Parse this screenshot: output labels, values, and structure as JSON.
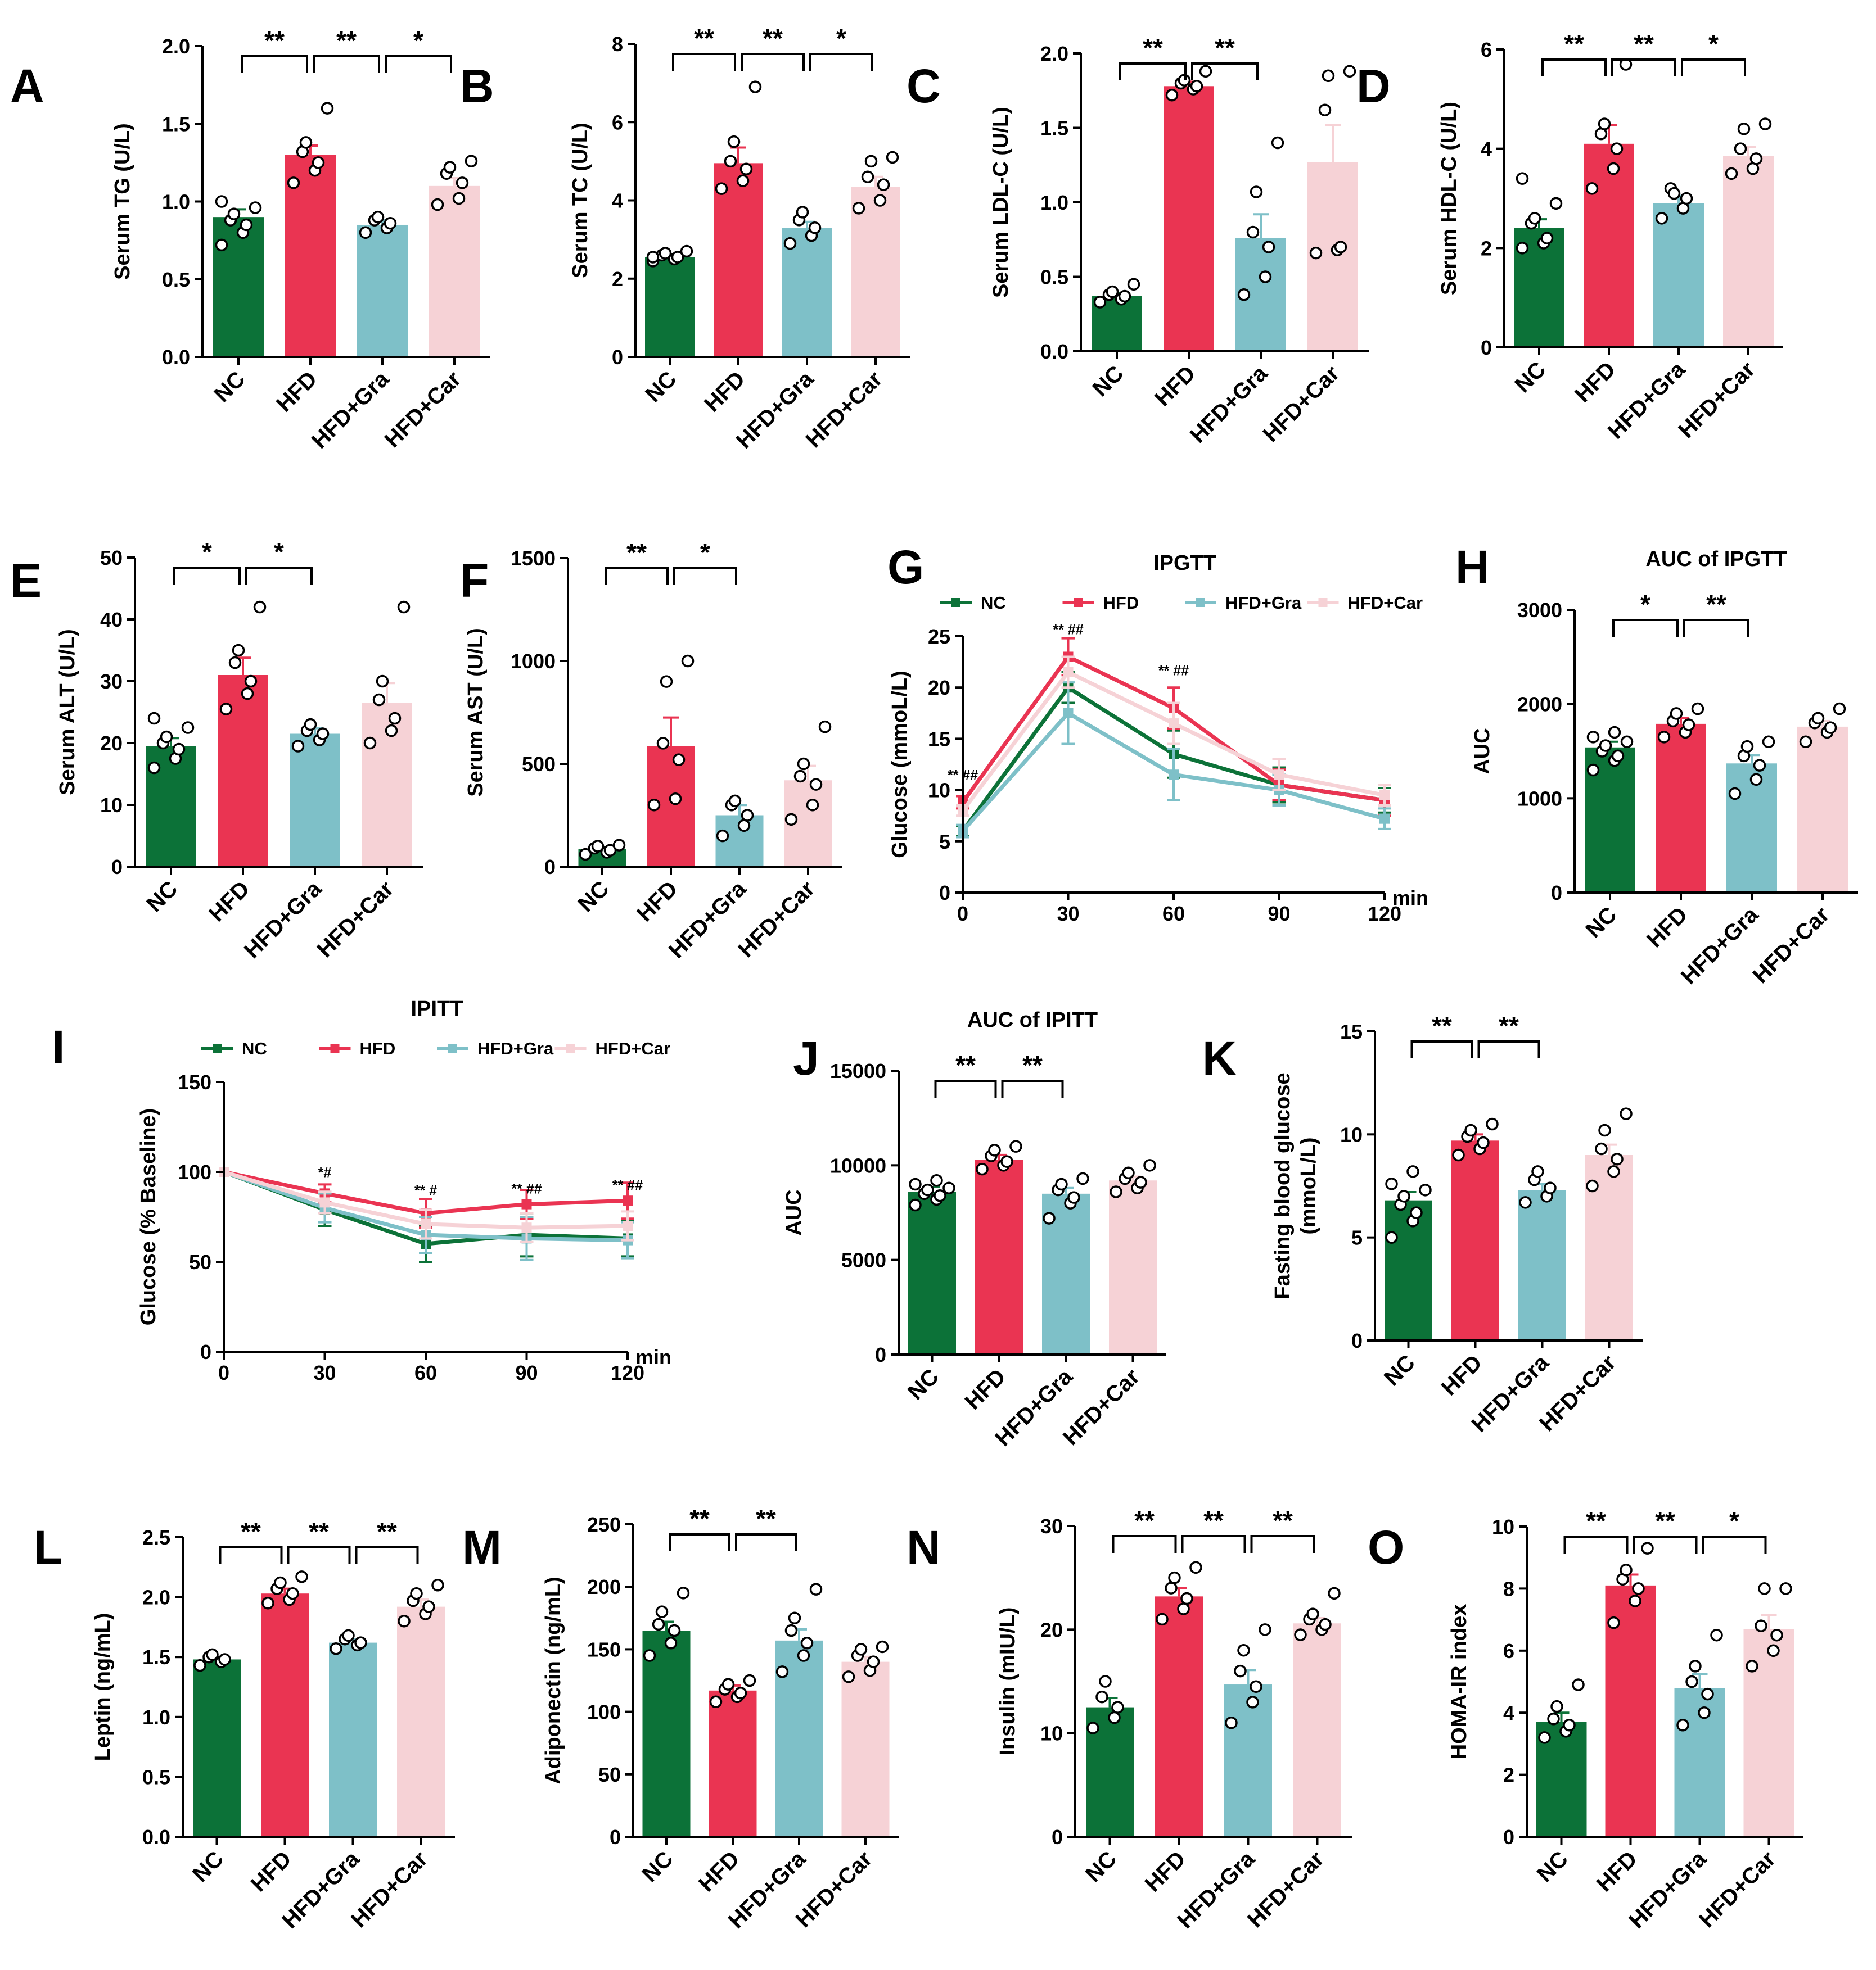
{
  "colors": {
    "NC": "#0c7238",
    "HFD": "#ea3452",
    "HFD+Gra": "#7ec0c8",
    "HFD+Car": "#f6d2d6"
  },
  "chart_data": [
    {
      "letter": "A",
      "type": "bar",
      "ylabel": "Serum TG (U/L)",
      "ylim": [
        0,
        2
      ],
      "ticks": [
        "0.0",
        "0.5",
        "1.0",
        "1.5",
        "2.0"
      ],
      "categories": [
        "NC",
        "HFD",
        "HFD+Gra",
        "HFD+Car"
      ],
      "values": [
        0.9,
        1.3,
        0.85,
        1.1
      ],
      "sem": [
        0.05,
        0.06,
        0.03,
        0.05
      ],
      "points": [
        [
          0.72,
          0.8,
          0.85,
          0.88,
          0.92,
          0.96,
          1.0
        ],
        [
          1.12,
          1.2,
          1.25,
          1.32,
          1.38,
          1.6
        ],
        [
          0.8,
          0.83,
          0.86,
          0.88,
          0.9
        ],
        [
          0.98,
          1.02,
          1.12,
          1.18,
          1.22,
          1.26
        ]
      ],
      "sig": [
        {
          "from": 0,
          "to": 1,
          "label": "**"
        },
        {
          "from": 1,
          "to": 2,
          "label": "**"
        },
        {
          "from": 2,
          "to": 3,
          "label": "*"
        }
      ]
    },
    {
      "letter": "B",
      "type": "bar",
      "ylabel": "Serum TC (U/L)",
      "ylim": [
        0,
        8
      ],
      "ticks": [
        "0",
        "2",
        "4",
        "6",
        "8"
      ],
      "categories": [
        "NC",
        "HFD",
        "HFD+Gra",
        "HFD+Car"
      ],
      "values": [
        2.55,
        4.95,
        3.3,
        4.35
      ],
      "sem": [
        0.06,
        0.4,
        0.15,
        0.25
      ],
      "points": [
        [
          2.45,
          2.5,
          2.55,
          2.6,
          2.65,
          2.7,
          2.55
        ],
        [
          4.3,
          4.5,
          4.8,
          5.0,
          5.5,
          6.9
        ],
        [
          2.9,
          3.1,
          3.3,
          3.5,
          3.7
        ],
        [
          3.8,
          4.0,
          4.4,
          4.6,
          5.0,
          5.1
        ]
      ],
      "sig": [
        {
          "from": 0,
          "to": 1,
          "label": "**"
        },
        {
          "from": 1,
          "to": 2,
          "label": "**"
        },
        {
          "from": 2,
          "to": 3,
          "label": "*"
        }
      ]
    },
    {
      "letter": "C",
      "type": "bar",
      "ylabel": "Serum LDL-C (U/L)",
      "ylim": [
        0,
        2
      ],
      "ticks": [
        "0.0",
        "0.5",
        "1.0",
        "1.5",
        "2.0"
      ],
      "categories": [
        "NC",
        "HFD",
        "HFD+Gra",
        "HFD+Car"
      ],
      "values": [
        0.37,
        1.78,
        0.76,
        1.27
      ],
      "sem": [
        0.02,
        0.03,
        0.16,
        0.25
      ],
      "points": [
        [
          0.33,
          0.35,
          0.37,
          0.38,
          0.4,
          0.45
        ],
        [
          1.72,
          1.76,
          1.78,
          1.8,
          1.82,
          1.88
        ],
        [
          0.38,
          0.5,
          0.7,
          0.8,
          1.07,
          1.4
        ],
        [
          0.66,
          0.68,
          0.7,
          1.62,
          1.85,
          1.88
        ]
      ],
      "sig": [
        {
          "from": 0,
          "to": 1,
          "label": "**"
        },
        {
          "from": 1,
          "to": 2,
          "label": "**"
        }
      ]
    },
    {
      "letter": "D",
      "type": "bar",
      "ylabel": "Serum HDL-C (U/L)",
      "ylim": [
        0,
        6
      ],
      "ticks": [
        "0",
        "2",
        "4",
        "6"
      ],
      "categories": [
        "NC",
        "HFD",
        "HFD+Gra",
        "HFD+Car"
      ],
      "values": [
        2.4,
        4.1,
        2.9,
        3.85
      ],
      "sem": [
        0.18,
        0.38,
        0.15,
        0.18
      ],
      "points": [
        [
          2.0,
          2.1,
          2.2,
          2.5,
          2.6,
          2.9,
          3.4
        ],
        [
          3.2,
          3.6,
          4.0,
          4.3,
          4.5,
          5.7
        ],
        [
          2.6,
          2.8,
          3.0,
          3.2,
          3.1
        ],
        [
          3.5,
          3.6,
          3.8,
          4.0,
          4.4,
          4.5
        ]
      ],
      "sig": [
        {
          "from": 0,
          "to": 1,
          "label": "**"
        },
        {
          "from": 1,
          "to": 2,
          "label": "**"
        },
        {
          "from": 2,
          "to": 3,
          "label": "*"
        }
      ]
    },
    {
      "letter": "E",
      "type": "bar",
      "ylabel": "Serum ALT (U/L)",
      "ylim": [
        0,
        50
      ],
      "ticks": [
        "0",
        "10",
        "20",
        "30",
        "40",
        "50"
      ],
      "categories": [
        "NC",
        "HFD",
        "HFD+Gra",
        "HFD+Car"
      ],
      "values": [
        19.5,
        31,
        21.5,
        26.5
      ],
      "sem": [
        1.3,
        2.8,
        0.9,
        3.2
      ],
      "points": [
        [
          16,
          17.5,
          19,
          20,
          21,
          22.5,
          24
        ],
        [
          25.5,
          28,
          30,
          33,
          35,
          42
        ],
        [
          19.5,
          20.5,
          21.5,
          22,
          23
        ],
        [
          20,
          22,
          24,
          27,
          30,
          42
        ]
      ],
      "sig": [
        {
          "from": 0,
          "to": 1,
          "label": "*"
        },
        {
          "from": 1,
          "to": 2,
          "label": "*"
        }
      ]
    },
    {
      "letter": "F",
      "type": "bar",
      "ylabel": "Serum AST (U/L)",
      "ylim": [
        0,
        1500
      ],
      "ticks": [
        "0",
        "500",
        "1000",
        "1500"
      ],
      "categories": [
        "NC",
        "HFD",
        "HFD+Gra",
        "HFD+Car"
      ],
      "values": [
        85,
        585,
        250,
        420
      ],
      "sem": [
        10,
        140,
        50,
        70
      ],
      "points": [
        [
          60,
          70,
          80,
          90,
          100,
          105
        ],
        [
          300,
          330,
          520,
          600,
          900,
          1000
        ],
        [
          150,
          200,
          250,
          300,
          320
        ],
        [
          230,
          300,
          400,
          440,
          500,
          680
        ]
      ],
      "sig": [
        {
          "from": 0,
          "to": 1,
          "label": "**"
        },
        {
          "from": 1,
          "to": 2,
          "label": "*"
        }
      ]
    },
    {
      "letter": "G",
      "type": "line",
      "title": "IPGTT",
      "ylabel": "Glucose (mmoL/L)",
      "xunit": "min",
      "x": [
        0,
        30,
        60,
        90,
        120
      ],
      "xticks": [
        "0",
        "30",
        "60",
        "90",
        "120"
      ],
      "xlim": [
        0,
        120
      ],
      "ylim": [
        0,
        25
      ],
      "ticks": [
        "0",
        "5",
        "10",
        "15",
        "20",
        "25"
      ],
      "series": [
        {
          "name": "NC",
          "values": [
            6,
            20,
            13.5,
            10.5,
            9
          ],
          "sem": [
            0.5,
            1.5,
            2.3,
            1.7,
            1.2
          ]
        },
        {
          "name": "HFD",
          "values": [
            8.8,
            23,
            18,
            10.5,
            9
          ],
          "sem": [
            0.6,
            1.8,
            2.0,
            1.5,
            1.5
          ]
        },
        {
          "name": "HFD+Gra",
          "values": [
            6,
            17.5,
            11.5,
            10,
            7.2
          ],
          "sem": [
            0.6,
            3.0,
            2.5,
            1.5,
            1.0
          ]
        },
        {
          "name": "HFD+Car",
          "values": [
            8,
            21.5,
            16.5,
            11.5,
            9.5
          ],
          "sem": [
            0.5,
            1.5,
            2.0,
            1.5,
            1.0
          ]
        }
      ],
      "annotations": [
        {
          "x": 0,
          "y": 11,
          "text": "** ##"
        },
        {
          "x": 30,
          "y": 25.2,
          "text": "** ##"
        },
        {
          "x": 60,
          "y": 21.2,
          "text": "** ##"
        }
      ]
    },
    {
      "letter": "H",
      "type": "bar",
      "title": "AUC of IPGTT",
      "ylabel": "AUC",
      "ylim": [
        0,
        3000
      ],
      "ticks": [
        "0",
        "1000",
        "2000",
        "3000"
      ],
      "categories": [
        "NC",
        "HFD",
        "HFD+Gra",
        "HFD+Car"
      ],
      "values": [
        1540,
        1790,
        1370,
        1760
      ],
      "sem": [
        60,
        60,
        90,
        60
      ],
      "points": [
        [
          1300,
          1400,
          1450,
          1500,
          1560,
          1600,
          1650,
          1700
        ],
        [
          1650,
          1700,
          1780,
          1820,
          1900,
          1950
        ],
        [
          1050,
          1200,
          1350,
          1450,
          1550,
          1600
        ],
        [
          1600,
          1700,
          1750,
          1800,
          1850,
          1950
        ]
      ],
      "sig": [
        {
          "from": 0,
          "to": 1,
          "label": "*"
        },
        {
          "from": 1,
          "to": 2,
          "label": "**"
        }
      ]
    },
    {
      "letter": "I",
      "type": "line",
      "title": "IPITT",
      "ylabel": "Glucose (% Baseline)",
      "xunit": "min",
      "x": [
        0,
        30,
        60,
        90,
        120
      ],
      "xticks": [
        "0",
        "30",
        "60",
        "90",
        "120"
      ],
      "xlim": [
        0,
        120
      ],
      "ylim": [
        0,
        150
      ],
      "ticks": [
        "0",
        "50",
        "100",
        "150"
      ],
      "series": [
        {
          "name": "NC",
          "values": [
            100,
            79,
            60,
            65,
            63
          ],
          "sem": [
            0,
            9,
            10,
            12,
            10
          ]
        },
        {
          "name": "HFD",
          "values": [
            100,
            88,
            77,
            82,
            84
          ],
          "sem": [
            0,
            5,
            8,
            8,
            10
          ]
        },
        {
          "name": "HFD+Gra",
          "values": [
            100,
            80,
            65,
            63,
            62
          ],
          "sem": [
            0,
            8,
            10,
            12,
            10
          ]
        },
        {
          "name": "HFD+Car",
          "values": [
            100,
            83,
            71,
            69,
            70
          ],
          "sem": [
            0,
            6,
            8,
            8,
            8
          ]
        }
      ],
      "annotations": [
        {
          "x": 30,
          "y": 97,
          "text": "*#"
        },
        {
          "x": 60,
          "y": 87,
          "text": "** #"
        },
        {
          "x": 90,
          "y": 88,
          "text": "** ##"
        },
        {
          "x": 120,
          "y": 90,
          "text": "** ##"
        }
      ]
    },
    {
      "letter": "J",
      "type": "bar",
      "title": "AUC of IPITT",
      "ylabel": "AUC",
      "ylim": [
        0,
        15000
      ],
      "ticks": [
        "0",
        "5000",
        "10000",
        "15000"
      ],
      "categories": [
        "NC",
        "HFD",
        "HFD+Gra",
        "HFD+Car"
      ],
      "values": [
        8600,
        10300,
        8500,
        9200
      ],
      "sem": [
        250,
        250,
        300,
        200
      ],
      "points": [
        [
          7900,
          8200,
          8400,
          8500,
          8700,
          8800,
          9000,
          9200
        ],
        [
          9800,
          10000,
          10200,
          10500,
          10800,
          11000
        ],
        [
          7200,
          8000,
          8300,
          8700,
          9000,
          9300
        ],
        [
          8600,
          8800,
          9100,
          9300,
          9600,
          10000
        ]
      ],
      "sig": [
        {
          "from": 0,
          "to": 1,
          "label": "**"
        },
        {
          "from": 1,
          "to": 2,
          "label": "**"
        }
      ]
    },
    {
      "letter": "K",
      "type": "bar",
      "ylabel": "Fasting blood glucose (mmoL/L)",
      "ylabel_lines": [
        "Fasting blood glucose",
        "(mmoL/L)"
      ],
      "ylim": [
        0,
        15
      ],
      "ticks": [
        "0",
        "5",
        "10",
        "15"
      ],
      "categories": [
        "NC",
        "HFD",
        "HFD+Gra",
        "HFD+Car"
      ],
      "values": [
        6.8,
        9.7,
        7.3,
        9.0
      ],
      "sem": [
        0.4,
        0.3,
        0.3,
        0.5
      ],
      "points": [
        [
          5.0,
          5.8,
          6.2,
          6.6,
          7.0,
          7.3,
          7.6,
          8.2
        ],
        [
          9.0,
          9.3,
          9.6,
          9.9,
          10.2,
          10.5
        ],
        [
          6.7,
          7.0,
          7.4,
          7.8,
          8.2
        ],
        [
          7.5,
          8.2,
          8.8,
          9.3,
          10.2,
          11.0
        ]
      ],
      "sig": [
        {
          "from": 0,
          "to": 1,
          "label": "**"
        },
        {
          "from": 1,
          "to": 2,
          "label": "**"
        }
      ]
    },
    {
      "letter": "L",
      "type": "bar",
      "ylabel": "Leptin (ng/mL)",
      "ylim": [
        0,
        2.5
      ],
      "ticks": [
        "0.0",
        "0.5",
        "1.0",
        "1.5",
        "2.0",
        "2.5"
      ],
      "categories": [
        "NC",
        "HFD",
        "HFD+Gra",
        "HFD+Car"
      ],
      "values": [
        1.48,
        2.03,
        1.62,
        1.92
      ],
      "sem": [
        0.02,
        0.04,
        0.03,
        0.06
      ],
      "points": [
        [
          1.43,
          1.46,
          1.48,
          1.5,
          1.52
        ],
        [
          1.95,
          1.98,
          2.03,
          2.07,
          2.12,
          2.17
        ],
        [
          1.57,
          1.6,
          1.62,
          1.65,
          1.68
        ],
        [
          1.8,
          1.86,
          1.92,
          1.97,
          2.03,
          2.1
        ]
      ],
      "sig": [
        {
          "from": 0,
          "to": 1,
          "label": "**"
        },
        {
          "from": 1,
          "to": 2,
          "label": "**"
        },
        {
          "from": 2,
          "to": 3,
          "label": "**"
        }
      ]
    },
    {
      "letter": "M",
      "type": "bar",
      "ylabel": "Adiponectin (ng/mL)",
      "ylim": [
        0,
        250
      ],
      "ticks": [
        "0",
        "50",
        "100",
        "150",
        "200",
        "250"
      ],
      "categories": [
        "NC",
        "HFD",
        "HFD+Gra",
        "HFD+Car"
      ],
      "values": [
        165,
        117,
        157,
        140
      ],
      "sem": [
        7,
        4,
        9,
        4
      ],
      "points": [
        [
          145,
          155,
          165,
          170,
          180,
          195
        ],
        [
          108,
          112,
          115,
          118,
          122,
          125
        ],
        [
          132,
          145,
          155,
          165,
          175,
          198
        ],
        [
          128,
          133,
          140,
          145,
          150,
          152
        ]
      ],
      "sig": [
        {
          "from": 0,
          "to": 1,
          "label": "**"
        },
        {
          "from": 1,
          "to": 2,
          "label": "**"
        }
      ]
    },
    {
      "letter": "N",
      "type": "bar",
      "ylabel": "Insulin (mIU/L)",
      "ylim": [
        0,
        30
      ],
      "ticks": [
        "0",
        "10",
        "20",
        "30"
      ],
      "categories": [
        "NC",
        "HFD",
        "HFD+Gra",
        "HFD+Car"
      ],
      "values": [
        12.5,
        23.2,
        14.7,
        20.6
      ],
      "sem": [
        0.9,
        0.8,
        1.4,
        0.5
      ],
      "points": [
        [
          10.5,
          11.5,
          12.5,
          13.5,
          15
        ],
        [
          21,
          22,
          23,
          24,
          25,
          26
        ],
        [
          11,
          13,
          14.5,
          16,
          18,
          20
        ],
        [
          19.5,
          20,
          20.5,
          21,
          21.5,
          23.5
        ]
      ],
      "sig": [
        {
          "from": 0,
          "to": 1,
          "label": "**"
        },
        {
          "from": 1,
          "to": 2,
          "label": "**"
        },
        {
          "from": 2,
          "to": 3,
          "label": "**"
        }
      ]
    },
    {
      "letter": "O",
      "type": "bar",
      "ylabel": "HOMA-IR index",
      "ylim": [
        0,
        10
      ],
      "ticks": [
        "0",
        "2",
        "4",
        "6",
        "8",
        "10"
      ],
      "categories": [
        "NC",
        "HFD",
        "HFD+Gra",
        "HFD+Car"
      ],
      "values": [
        3.7,
        8.1,
        4.8,
        6.7
      ],
      "sem": [
        0.3,
        0.35,
        0.45,
        0.45
      ],
      "points": [
        [
          3.2,
          3.4,
          3.6,
          3.8,
          4.2,
          4.9
        ],
        [
          6.9,
          7.6,
          8.0,
          8.3,
          8.6,
          9.3
        ],
        [
          3.6,
          4.0,
          4.6,
          5.0,
          5.5,
          6.5
        ],
        [
          5.5,
          6.0,
          6.5,
          6.8,
          8.0,
          8.0
        ]
      ],
      "sig": [
        {
          "from": 0,
          "to": 1,
          "label": "**"
        },
        {
          "from": 1,
          "to": 2,
          "label": "**"
        },
        {
          "from": 2,
          "to": 3,
          "label": "*"
        }
      ]
    }
  ]
}
